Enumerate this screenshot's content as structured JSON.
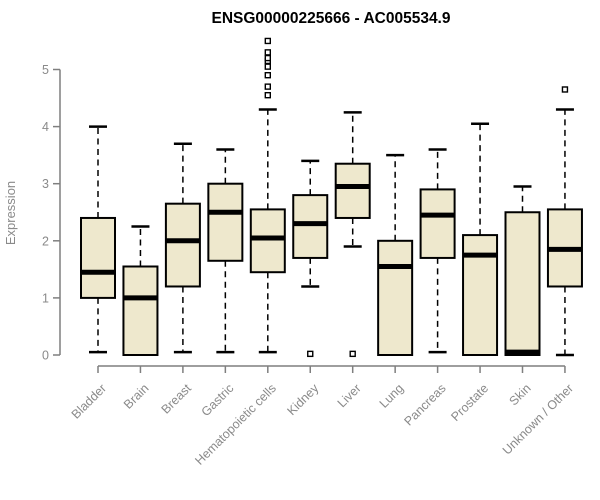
{
  "page": {
    "background": "#ffffff"
  },
  "chart_data": {
    "type": "boxplot",
    "title": "ENSG00000225666 - AC005534.9",
    "ylabel": "Expression",
    "xlabel": "",
    "yticks": [
      0,
      1,
      2,
      3,
      4,
      5
    ],
    "ylim": [
      0,
      5.5
    ],
    "grid": false,
    "legend": null,
    "colors": {
      "box_fill": "#EEE8CD",
      "box_stroke": "#000000",
      "median": "#000000",
      "whisker": "#000000",
      "axis_line": "#7f7f7f",
      "axis_text": "#8a8a8a",
      "title_text": "#000000"
    },
    "categories": [
      "Bladder",
      "Brain",
      "Breast",
      "Gastric",
      "Hematopoietic cells",
      "Kidney",
      "Liver",
      "Lung",
      "Pancreas",
      "Prostate",
      "Skin",
      "Unknown / Other"
    ],
    "boxes": [
      {
        "category": "Bladder",
        "whisker_low": 0.05,
        "q1": 1.0,
        "median": 1.45,
        "q3": 2.4,
        "whisker_high": 4.0,
        "outliers": []
      },
      {
        "category": "Brain",
        "whisker_low": 0.0,
        "q1": 0.0,
        "median": 1.0,
        "q3": 1.55,
        "whisker_high": 2.25,
        "outliers": []
      },
      {
        "category": "Breast",
        "whisker_low": 0.05,
        "q1": 1.2,
        "median": 2.0,
        "q3": 2.65,
        "whisker_high": 3.7,
        "outliers": []
      },
      {
        "category": "Gastric",
        "whisker_low": 0.05,
        "q1": 1.65,
        "median": 2.5,
        "q3": 3.0,
        "whisker_high": 3.6,
        "outliers": []
      },
      {
        "category": "Hematopoietic cells",
        "whisker_low": 0.05,
        "q1": 1.45,
        "median": 2.05,
        "q3": 2.55,
        "whisker_high": 4.3,
        "outliers": [
          4.55,
          4.7,
          4.9,
          5.05,
          5.15,
          5.2,
          5.3,
          5.5
        ]
      },
      {
        "category": "Kidney",
        "whisker_low": 1.2,
        "q1": 1.7,
        "median": 2.3,
        "q3": 2.8,
        "whisker_high": 3.4,
        "outliers": [
          0.02
        ]
      },
      {
        "category": "Liver",
        "whisker_low": 1.9,
        "q1": 2.4,
        "median": 2.95,
        "q3": 3.35,
        "whisker_high": 4.25,
        "outliers": [
          0.02
        ]
      },
      {
        "category": "Lung",
        "whisker_low": 0.0,
        "q1": 0.0,
        "median": 1.55,
        "q3": 2.0,
        "whisker_high": 3.5,
        "outliers": []
      },
      {
        "category": "Pancreas",
        "whisker_low": 0.05,
        "q1": 1.7,
        "median": 2.45,
        "q3": 2.9,
        "whisker_high": 3.6,
        "outliers": []
      },
      {
        "category": "Prostate",
        "whisker_low": 0.0,
        "q1": 0.0,
        "median": 1.75,
        "q3": 2.1,
        "whisker_high": 4.05,
        "outliers": []
      },
      {
        "category": "Skin",
        "whisker_low": 0.0,
        "q1": 0.0,
        "median": 0.05,
        "q3": 2.5,
        "whisker_high": 2.95,
        "outliers": []
      },
      {
        "category": "Unknown / Other",
        "whisker_low": 0.0,
        "q1": 1.2,
        "median": 1.85,
        "q3": 2.55,
        "whisker_high": 4.3,
        "outliers": [
          4.65
        ]
      }
    ]
  }
}
